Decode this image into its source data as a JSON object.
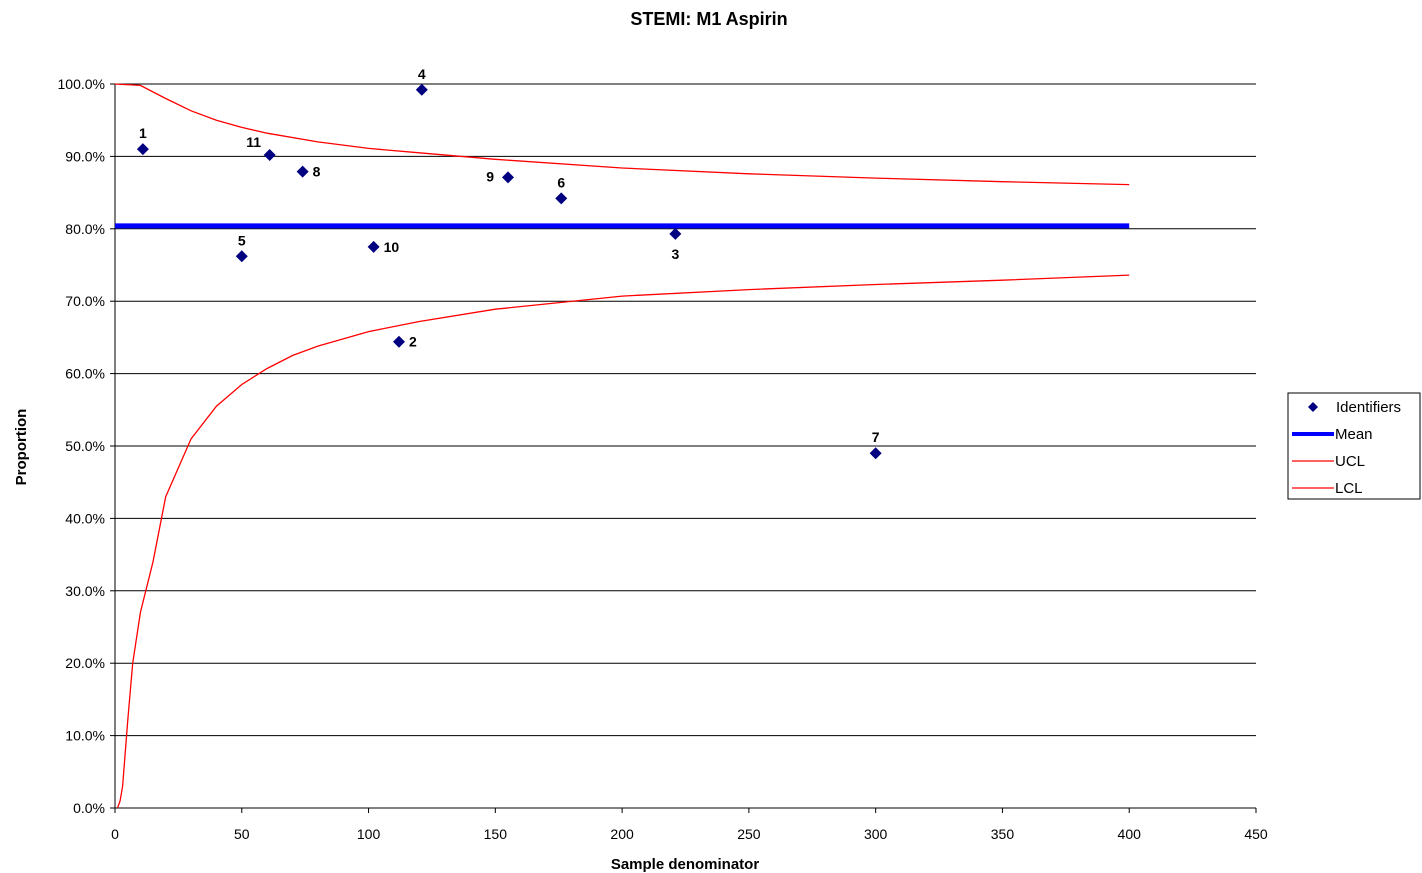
{
  "chart_data": {
    "type": "scatter",
    "title": "STEMI: M1 Aspirin",
    "xlabel": "Sample denominator",
    "ylabel": "Proportion",
    "xlim": [
      0,
      450
    ],
    "ylim": [
      0,
      1
    ],
    "x_ticks": [
      "0",
      "50",
      "100",
      "150",
      "200",
      "250",
      "300",
      "350",
      "400",
      "450"
    ],
    "y_ticks": [
      "0.0%",
      "10.0%",
      "20.0%",
      "30.0%",
      "40.0%",
      "50.0%",
      "60.0%",
      "70.0%",
      "80.0%",
      "90.0%",
      "100.0%"
    ],
    "grid": "horizontal",
    "legend_position": "right",
    "mean": 0.804,
    "points": [
      {
        "label": "1",
        "x": 11,
        "y": 0.91,
        "label_pos": "above"
      },
      {
        "label": "2",
        "x": 112,
        "y": 0.644,
        "label_pos": "right"
      },
      {
        "label": "3",
        "x": 221,
        "y": 0.793,
        "label_pos": "below"
      },
      {
        "label": "4",
        "x": 121,
        "y": 0.992,
        "label_pos": "above"
      },
      {
        "label": "5",
        "x": 50,
        "y": 0.762,
        "label_pos": "above"
      },
      {
        "label": "6",
        "x": 176,
        "y": 0.842,
        "label_pos": "above"
      },
      {
        "label": "7",
        "x": 300,
        "y": 0.49,
        "label_pos": "above"
      },
      {
        "label": "8",
        "x": 74,
        "y": 0.879,
        "label_pos": "right"
      },
      {
        "label": "9",
        "x": 155,
        "y": 0.871,
        "label_pos": "left"
      },
      {
        "label": "10",
        "x": 102,
        "y": 0.775,
        "label_pos": "right"
      },
      {
        "label": "11",
        "x": 61,
        "y": 0.902,
        "label_pos": "aboveleft"
      }
    ],
    "series": [
      {
        "name": "Identifiers",
        "kind": "markers",
        "color": "#000080"
      },
      {
        "name": "Mean",
        "kind": "line",
        "color": "#0000ff",
        "x": [
          0,
          400
        ],
        "y": [
          0.804,
          0.804
        ]
      },
      {
        "name": "UCL",
        "kind": "line",
        "color": "#ff0000",
        "x": [
          0,
          10,
          20,
          30,
          40,
          50,
          60,
          80,
          100,
          120,
          150,
          200,
          250,
          300,
          350,
          400
        ],
        "y": [
          1.0,
          0.998,
          0.98,
          0.963,
          0.95,
          0.94,
          0.932,
          0.92,
          0.911,
          0.905,
          0.896,
          0.884,
          0.876,
          0.87,
          0.865,
          0.861
        ]
      },
      {
        "name": "LCL",
        "kind": "line",
        "color": "#ff0000",
        "x": [
          1,
          2,
          3,
          5,
          7,
          10,
          15,
          20,
          30,
          40,
          50,
          60,
          70,
          80,
          100,
          120,
          150,
          200,
          250,
          300,
          350,
          400
        ],
        "y": [
          0.0,
          0.01,
          0.03,
          0.12,
          0.2,
          0.27,
          0.34,
          0.43,
          0.51,
          0.555,
          0.585,
          0.607,
          0.625,
          0.638,
          0.658,
          0.672,
          0.689,
          0.707,
          0.716,
          0.723,
          0.729,
          0.736
        ]
      }
    ]
  }
}
